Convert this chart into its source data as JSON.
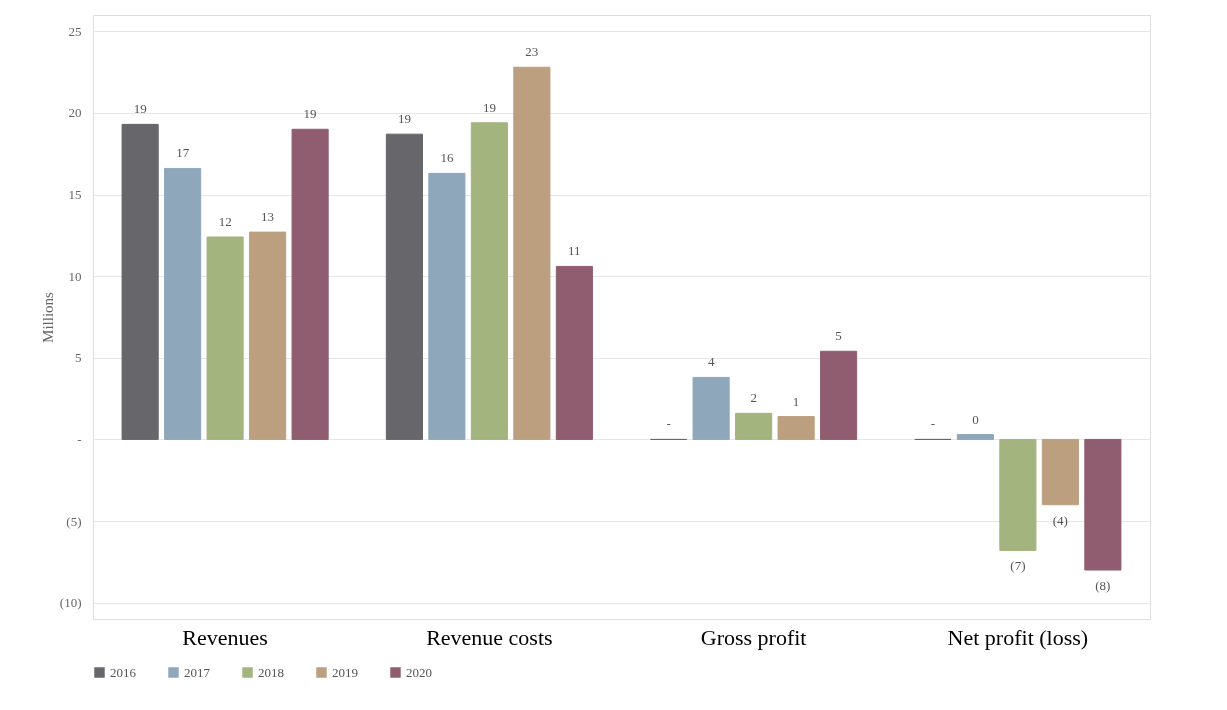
{
  "chart_data": {
    "type": "bar",
    "ylabel": "Millions",
    "categories": [
      "Revenues",
      "Revenue costs",
      "Gross profit",
      "Net profit (loss)"
    ],
    "series": [
      {
        "name": "2016",
        "color": "#67666b",
        "values": [
          19.3,
          18.7,
          0,
          0
        ],
        "value_labels": [
          "19",
          "19",
          "-",
          "-"
        ]
      },
      {
        "name": "2017",
        "color": "#8fa7bb",
        "values": [
          16.6,
          16.3,
          3.8,
          0.3
        ],
        "value_labels": [
          "17",
          "16",
          "4",
          "0"
        ]
      },
      {
        "name": "2018",
        "color": "#a3b47f",
        "values": [
          12.4,
          19.4,
          1.6,
          -6.8
        ],
        "value_labels": [
          "12",
          "19",
          "2",
          "(7)"
        ]
      },
      {
        "name": "2019",
        "color": "#bb9f7f",
        "values": [
          12.7,
          22.8,
          1.4,
          -4
        ],
        "value_labels": [
          "13",
          "23",
          "1",
          "(4)"
        ]
      },
      {
        "name": "2020",
        "color": "#8f5d6f",
        "values": [
          19.0,
          10.6,
          5.4,
          -8.0
        ],
        "value_labels": [
          "19",
          "11",
          "5",
          "(8)"
        ]
      }
    ],
    "ylim": [
      -11,
      26
    ],
    "yticks": [
      {
        "value": -10,
        "label": "(10)"
      },
      {
        "value": -5,
        "label": "(5)"
      },
      {
        "value": 0,
        "label": "-"
      },
      5,
      10,
      15,
      20,
      25
    ],
    "grid": "y",
    "legend": "bottom"
  }
}
